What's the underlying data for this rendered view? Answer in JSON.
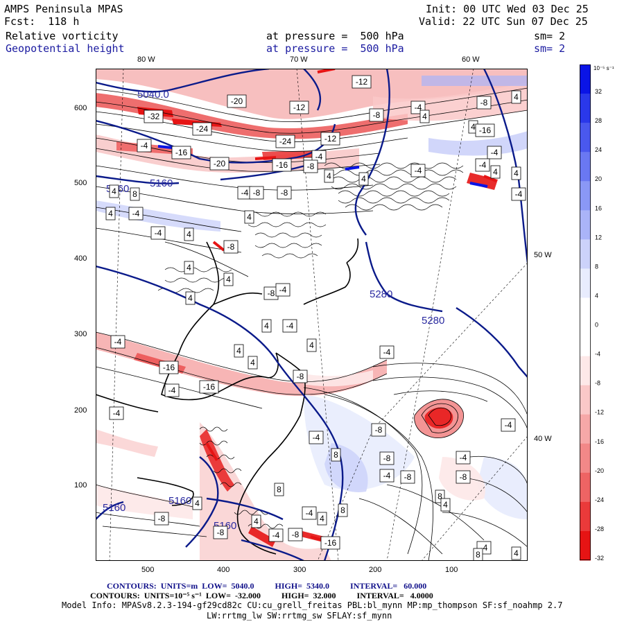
{
  "header": {
    "model": "AMPS Peninsula MPAS",
    "fcst": "Fcst:  118 h",
    "init": "Init: 00 UTC Wed 03 Dec 25",
    "valid": "Valid: 22 UTC Sun 07 Dec 25",
    "field1_name": "Relative vorticity",
    "field1_level": "at pressure =  500 hPa",
    "field1_sm": "sm= 2",
    "field2_name": "Geopotential height",
    "field2_level": "at pressure =  500 hPa",
    "field2_sm": "sm= 2"
  },
  "axes": {
    "top_lon": [
      "80 W",
      "70 W",
      "60 W"
    ],
    "right_lon": [
      "50 W",
      "40 W"
    ],
    "y_ticks": [
      "600",
      "500",
      "400",
      "300",
      "200",
      "100"
    ],
    "x_ticks": [
      "500",
      "400",
      "300",
      "200",
      "100"
    ]
  },
  "colorbar": {
    "unit": "10⁻⁵ s⁻¹",
    "labels": [
      "32",
      "28",
      "24",
      "20",
      "16",
      "12",
      "8",
      "4",
      "0",
      "-4",
      "-8",
      "-12",
      "-16",
      "-20",
      "-24",
      "-28",
      "-32"
    ],
    "colors": [
      "#0a14e6",
      "#2a38ea",
      "#4a58ee",
      "#6a78f2",
      "#8a98f6",
      "#aab4f8",
      "#ccd2fa",
      "#e8ecfd",
      "#ffffff",
      "#ffffff",
      "#fde8e8",
      "#fac8c8",
      "#f6a8a8",
      "#f28888",
      "#ee6464",
      "#ea3a3a",
      "#e61414"
    ]
  },
  "height_labels": [
    "5040.0",
    "5160",
    "5160",
    "5280",
    "5280",
    "5160",
    "5160",
    "5160"
  ],
  "vort_labels": [
    "-20",
    "-12",
    "-32",
    "-24",
    "-8",
    "-4",
    "-12",
    "-24",
    "-4",
    "-16",
    "-20",
    "-16",
    "-4",
    "4",
    "-4",
    "-8",
    "-8",
    "4",
    "8",
    "4",
    "-4",
    "-4",
    "4",
    "-8",
    "4",
    "4",
    "4",
    "-8",
    "4",
    "-4",
    "4",
    "-4",
    "4",
    "-8",
    "4",
    "4",
    "-4",
    "4",
    "4",
    "-4",
    "-16",
    "-12",
    "-4",
    "-8",
    "-4",
    "-16",
    "-16",
    "-4",
    "-4",
    "4",
    "-4",
    "8",
    "-4",
    "-8",
    "-8",
    "-4",
    "-8",
    "-8",
    "-4",
    "8",
    "4",
    "4",
    "8",
    "-8",
    "4",
    "-8",
    "-4",
    "4",
    "8",
    "-4",
    "-16",
    "-8",
    "-4",
    "4",
    "8",
    "4",
    "4",
    "-4",
    "-8",
    "4",
    "-4",
    "-4"
  ],
  "footer": {
    "line1": "CONTOURS:  UNITS=m  LOW=  5040.0          HIGH=  5340.0          INTERVAL=   60.000",
    "line2": "CONTOURS:  UNITS=10⁻⁵ s⁻¹  LOW=  -32.000          HIGH=  32.000          INTERVAL=   4.0000",
    "line3": "Model Info: MPASv8.2.3-194-gf29cd82c CU:cu_grell_freitas PBL:bl_mynn MP:mp_thompson SF:sf_noahmp 2.7",
    "line4": "LW:rrtmg_lw SW:rrtmg_sw SFLAY:sf_mynn"
  }
}
